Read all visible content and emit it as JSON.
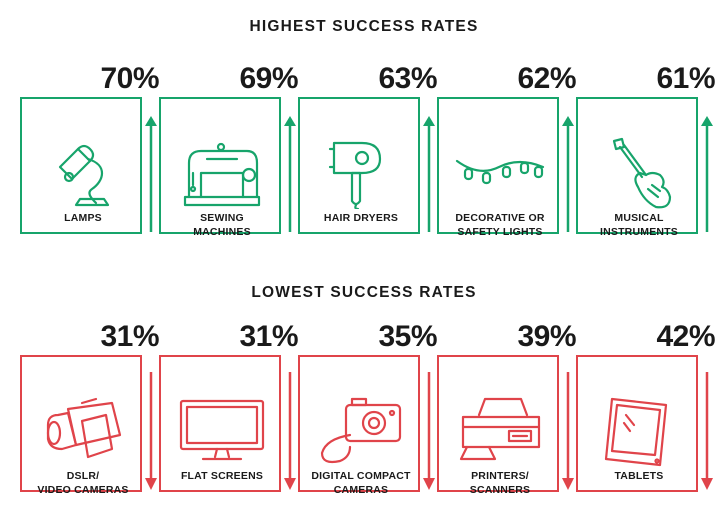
{
  "highest": {
    "title": "HIGHEST SUCCESS RATES",
    "color": "#17a46b",
    "items": [
      {
        "percent": "70%",
        "label": "LAMPS",
        "icon": "lamp-icon"
      },
      {
        "percent": "69%",
        "label": "SEWING\nMACHINES",
        "icon": "sewing-machine-icon"
      },
      {
        "percent": "63%",
        "label": "HAIR DRYERS",
        "icon": "hair-dryer-icon"
      },
      {
        "percent": "62%",
        "label": "DECORATIVE OR\nSAFETY LIGHTS",
        "icon": "string-lights-icon"
      },
      {
        "percent": "61%",
        "label": "MUSICAL\nINSTRUMENTS",
        "icon": "guitar-icon"
      }
    ]
  },
  "lowest": {
    "title": "LOWEST SUCCESS RATES",
    "color": "#e0444a",
    "items": [
      {
        "percent": "31%",
        "label": "DSLR/\nVIDEO CAMERAS",
        "icon": "video-camera-icon"
      },
      {
        "percent": "31%",
        "label": "FLAT SCREENS",
        "icon": "flat-screen-icon"
      },
      {
        "percent": "35%",
        "label": "DIGITAL COMPACT\nCAMERAS",
        "icon": "compact-camera-icon"
      },
      {
        "percent": "39%",
        "label": "PRINTERS/\nSCANNERS",
        "icon": "printer-icon"
      },
      {
        "percent": "42%",
        "label": "TABLETS",
        "icon": "tablet-icon"
      }
    ]
  }
}
